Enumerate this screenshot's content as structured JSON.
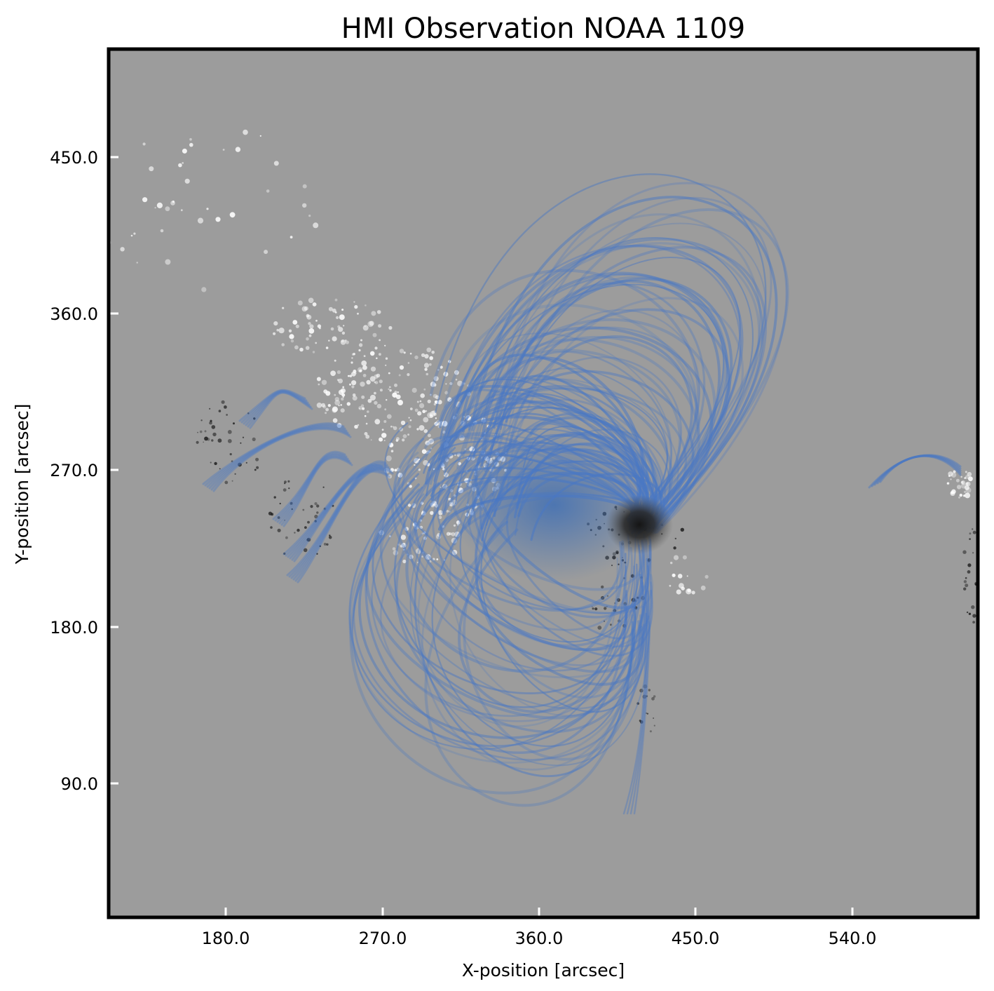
{
  "title": "HMI Observation NOAA 1109",
  "xlabel": "X-position [arcsec]",
  "ylabel": "Y-position [arcsec]",
  "x_ticks": [
    "180.0",
    "270.0",
    "360.0",
    "450.0",
    "540.0"
  ],
  "y_ticks": [
    "450.0",
    "360.0",
    "270.0",
    "180.0",
    "90.0"
  ],
  "colors": {
    "background_gray": "#9c9c9c",
    "field_lines": "#4a78c4",
    "frame": "#000000",
    "ticks": "#ffffff"
  }
}
